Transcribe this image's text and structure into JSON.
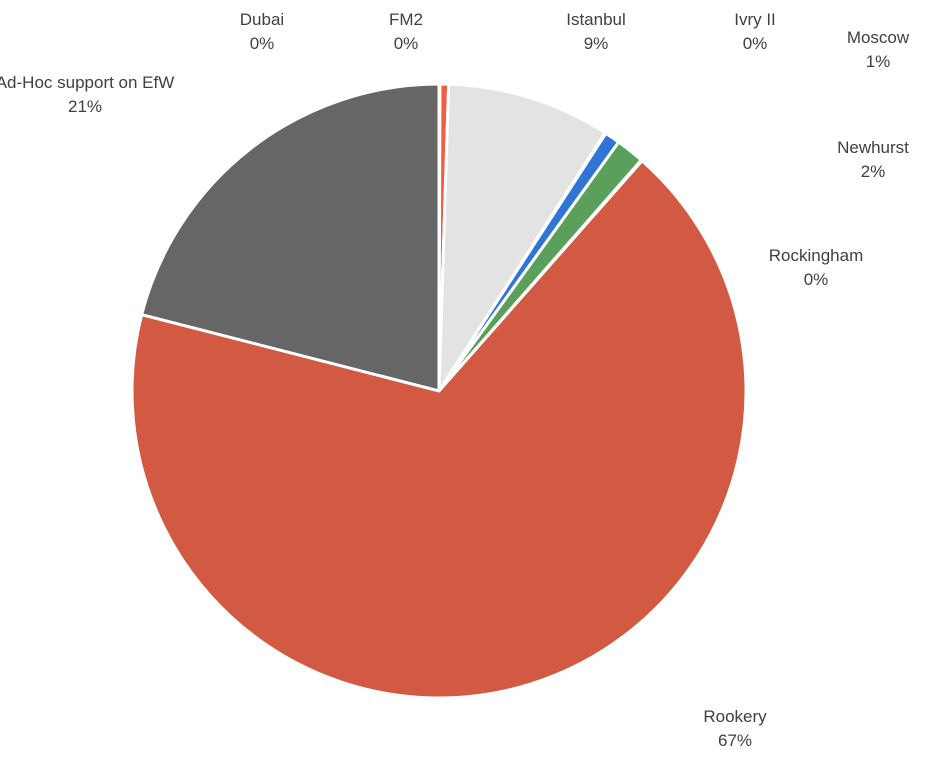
{
  "chart_data": {
    "type": "pie",
    "title": "",
    "legend": "none",
    "slices": [
      {
        "label": "Ad-Hoc support on EfW",
        "value": 21,
        "display": "21%",
        "color": "#666666"
      },
      {
        "label": "Dubai",
        "value": 0.05,
        "display": "0%",
        "color": "#cc3b2a"
      },
      {
        "label": "FM2",
        "value": 0.45,
        "display": "0%",
        "color": "#f25c45"
      },
      {
        "label": "Istanbul",
        "value": 8.6,
        "display": "9%",
        "color": "#e3e3e3"
      },
      {
        "label": "Ivry II",
        "value": 0.05,
        "display": "0%",
        "color": "#dddddd"
      },
      {
        "label": "Moscow",
        "value": 0.8,
        "display": "1%",
        "color": "#2e75d6"
      },
      {
        "label": "Newhurst",
        "value": 1.5,
        "display": "2%",
        "color": "#5aa05a"
      },
      {
        "label": "Rockingham",
        "value": 0.05,
        "display": "0%",
        "color": "#c5c5c5"
      },
      {
        "label": "Rookery",
        "value": 67.5,
        "display": "67%",
        "color": "#d35a42"
      }
    ]
  }
}
